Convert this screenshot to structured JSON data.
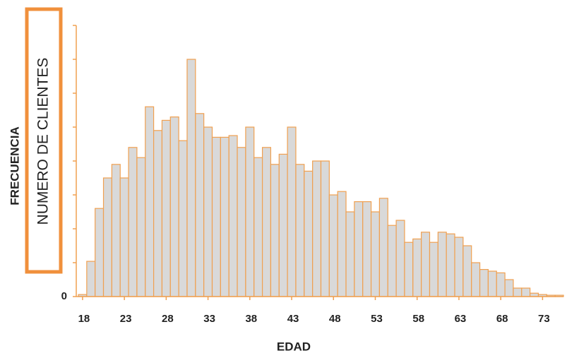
{
  "chart_data": {
    "type": "histogram",
    "title": "FRECUENCIA",
    "y_label": "NUMERO DE CLIENTES",
    "x_label": "EDAD",
    "bins": [
      17.5,
      18.5,
      19.5,
      20.5,
      21.5,
      22.5,
      23.5,
      24.5,
      25.5,
      26.5,
      27.5,
      28.5,
      29.5,
      30.5,
      31.5,
      32.5,
      33.5,
      34.5,
      35.5,
      36.5,
      37.5,
      38.5,
      39.5,
      40.5,
      41.5,
      42.5,
      43.5,
      44.5,
      45.5,
      46.5,
      47.5,
      48.5,
      49.5,
      50.5,
      51.5,
      52.5,
      53.5,
      54.5,
      55.5,
      56.5,
      57.5,
      58.5,
      59.5,
      60.5,
      61.5,
      62.5,
      63.5,
      64.5,
      65.5,
      66.5,
      67.5,
      68.5,
      69.5,
      70.5,
      71.5,
      72.5,
      73.5,
      74.5,
      75.5
    ],
    "values": [
      0.06,
      1.04,
      2.6,
      3.5,
      3.9,
      3.5,
      4.4,
      4.1,
      5.6,
      4.9,
      5.2,
      5.3,
      4.6,
      7.0,
      5.4,
      5.0,
      4.7,
      4.7,
      4.75,
      4.4,
      5.0,
      4.1,
      4.4,
      3.9,
      4.2,
      5.0,
      3.9,
      3.7,
      4.0,
      4.0,
      3.0,
      3.1,
      2.5,
      2.8,
      2.8,
      2.5,
      2.9,
      2.1,
      2.25,
      1.6,
      1.7,
      1.9,
      1.6,
      1.9,
      1.85,
      1.75,
      1.5,
      1.0,
      0.8,
      0.75,
      0.7,
      0.5,
      0.25,
      0.25,
      0.1,
      0.06,
      0.04,
      0.04
    ],
    "color": "#d9d9d9",
    "edge_color": "#f0a050",
    "xlim": [
      17.5,
      75.5
    ],
    "xticks": [
      18,
      23,
      28,
      33,
      38,
      43,
      48,
      53,
      58,
      63,
      68,
      73
    ],
    "ylim": [
      0,
      8
    ],
    "yticks": [
      0,
      {
        "value": 1,
        "label": null
      },
      {
        "value": 2,
        "label": null
      },
      {
        "value": 3,
        "label": null
      },
      {
        "value": 4,
        "label": null
      },
      {
        "value": 5,
        "label": null
      },
      {
        "value": 6,
        "label": null
      },
      {
        "value": 7,
        "label": null
      },
      {
        "value": 8,
        "label": null
      }
    ]
  }
}
